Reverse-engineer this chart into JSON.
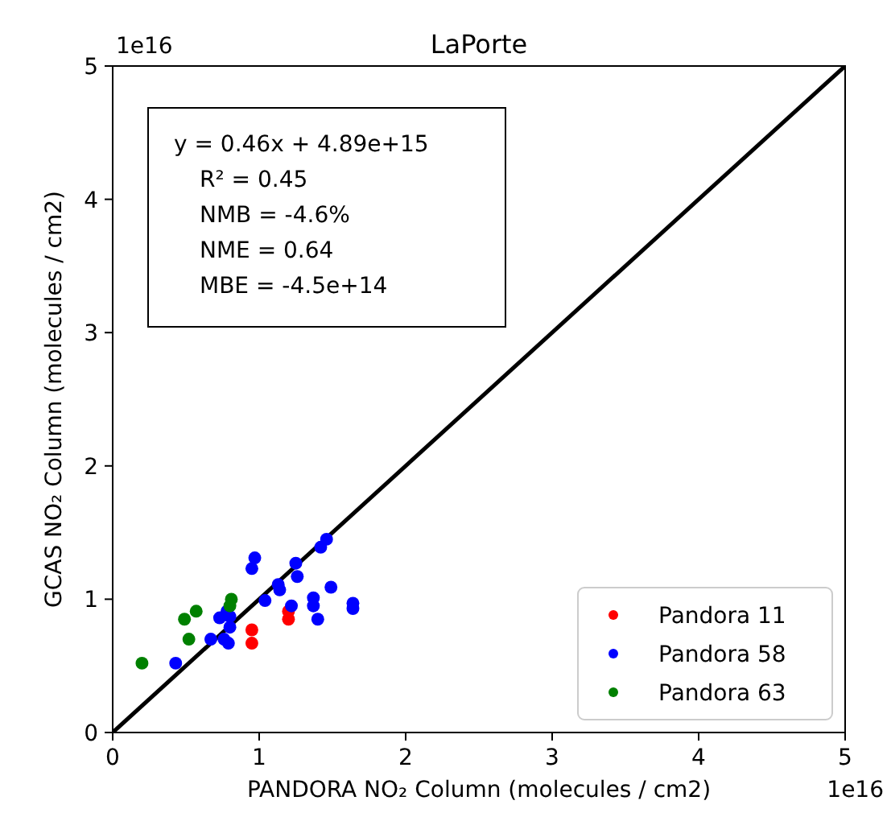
{
  "chart_data": {
    "type": "scatter",
    "title": "LaPorte",
    "xlabel": "PANDORA NO₂ Column (molecules / cm2)",
    "ylabel": "GCAS NO₂ Column (molecules / cm2)",
    "xlim": [
      0,
      5
    ],
    "ylim": [
      0,
      5
    ],
    "xticks": [
      0,
      1,
      2,
      3,
      4,
      5
    ],
    "yticks": [
      0,
      1,
      2,
      3,
      4,
      5
    ],
    "marker": "circle",
    "legend": "bottom right",
    "grid": false,
    "annotations": [
      "y = 0.46x + 4.89e+15",
      "R² = 0.45",
      "NMB = -4.6%",
      "NME = 0.64",
      "MBE = -4.5e+14",
      "1e16",
      "1e16"
    ],
    "series": [
      {
        "type": "line",
        "marker": "none",
        "color": "#000000",
        "x": [
          0,
          5
        ],
        "values": [
          0,
          5
        ]
      },
      {
        "name": "Pandora 11",
        "color": "#ff0000",
        "x": [
          0.95,
          0.95,
          1.2,
          1.2
        ],
        "values": [
          0.77,
          0.67,
          0.91,
          0.85
        ]
      },
      {
        "name": "Pandora 58",
        "color": "#0000ff",
        "x": [
          0.43,
          0.67,
          0.73,
          0.78,
          0.8,
          0.76,
          0.79,
          0.8,
          0.97,
          0.95,
          1.04,
          1.13,
          1.14,
          1.25,
          1.26,
          1.22,
          1.42,
          1.46,
          1.37,
          1.37,
          1.4,
          1.49,
          1.64,
          1.64
        ],
        "values": [
          0.52,
          0.7,
          0.86,
          0.91,
          0.87,
          0.7,
          0.67,
          0.79,
          1.31,
          1.23,
          0.99,
          1.11,
          1.07,
          1.27,
          1.17,
          0.95,
          1.39,
          1.45,
          1.01,
          0.95,
          0.85,
          1.09,
          0.97,
          0.93
        ]
      },
      {
        "name": "Pandora 63",
        "color": "#008000",
        "x": [
          0.2,
          0.49,
          0.57,
          0.52,
          0.81,
          0.8
        ],
        "values": [
          0.52,
          0.85,
          0.91,
          0.7,
          1.0,
          0.95
        ]
      }
    ]
  }
}
